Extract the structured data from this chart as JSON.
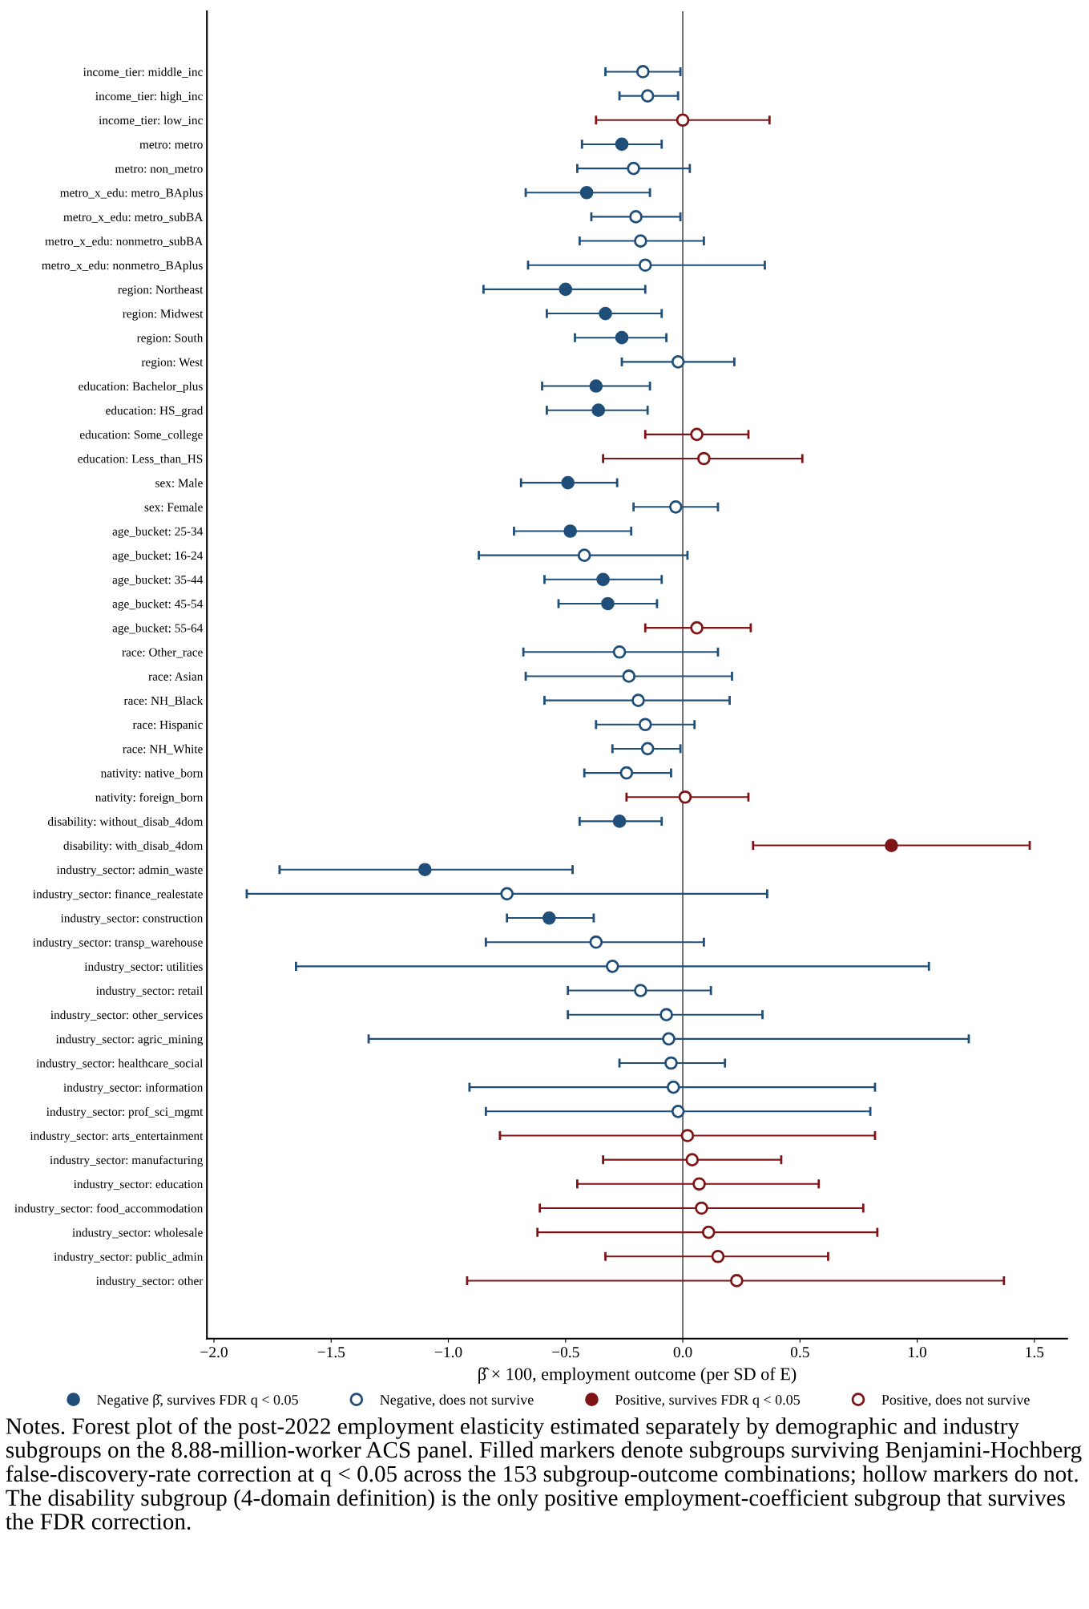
{
  "chart_data": {
    "type": "scatter",
    "orientation": "horizontal",
    "categories": [
      "income_tier: middle_inc",
      "income_tier: high_inc",
      "income_tier: low_inc",
      "metro: metro",
      "metro: non_metro",
      "metro_x_edu: metro_BAplus",
      "metro_x_edu: metro_subBA",
      "metro_x_edu: nonmetro_subBA",
      "metro_x_edu: nonmetro_BAplus",
      "region: Northeast",
      "region: Midwest",
      "region: South",
      "region: West",
      "education: Bachelor_plus",
      "education: HS_grad",
      "education: Some_college",
      "education: Less_than_HS",
      "sex: Male",
      "sex: Female",
      "age_bucket: 25-34",
      "age_bucket: 16-24",
      "age_bucket: 35-44",
      "age_bucket: 45-54",
      "age_bucket: 55-64",
      "race: Other_race",
      "race: Asian",
      "race: NH_Black",
      "race: Hispanic",
      "race: NH_White",
      "nativity: native_born",
      "nativity: foreign_born",
      "disability: without_disab_4dom",
      "disability: with_disab_4dom",
      "industry_sector: admin_waste",
      "industry_sector: finance_realestate",
      "industry_sector: construction",
      "industry_sector: transp_warehouse",
      "industry_sector: utilities",
      "industry_sector: retail",
      "industry_sector: other_services",
      "industry_sector: agric_mining",
      "industry_sector: healthcare_social",
      "industry_sector: information",
      "industry_sector: prof_sci_mgmt",
      "industry_sector: arts_entertainment",
      "industry_sector: manufacturing",
      "industry_sector: education",
      "industry_sector: food_accommodation",
      "industry_sector: wholesale",
      "industry_sector: public_admin",
      "industry_sector: other"
    ],
    "series": [
      {
        "name": "Negative β̂, survives FDR q < 0.05",
        "color": "#1f4e79",
        "marker": "circle",
        "values": [
          null,
          null,
          null,
          -0.26,
          null,
          -0.41,
          null,
          null,
          null,
          -0.5,
          -0.33,
          -0.26,
          null,
          -0.37,
          -0.36,
          null,
          null,
          -0.49,
          null,
          -0.48,
          null,
          -0.34,
          -0.32,
          null,
          null,
          null,
          null,
          null,
          null,
          null,
          null,
          -0.27,
          null,
          -1.1,
          null,
          -0.57,
          null,
          null,
          null,
          null,
          null,
          null,
          null,
          null,
          null,
          null,
          null,
          null,
          null,
          null,
          null
        ],
        "errors": [
          null,
          null,
          null,
          [
            -0.43,
            -0.09
          ],
          null,
          [
            -0.67,
            -0.14
          ],
          null,
          null,
          null,
          [
            -0.85,
            -0.16
          ],
          [
            -0.58,
            -0.09
          ],
          [
            -0.46,
            -0.07
          ],
          null,
          [
            -0.6,
            -0.14
          ],
          [
            -0.58,
            -0.15
          ],
          null,
          null,
          [
            -0.69,
            -0.28
          ],
          null,
          [
            -0.72,
            -0.22
          ],
          null,
          [
            -0.59,
            -0.09
          ],
          [
            -0.53,
            -0.11
          ],
          null,
          null,
          null,
          null,
          null,
          null,
          null,
          null,
          [
            -0.44,
            -0.09
          ],
          null,
          [
            -1.72,
            -0.47
          ],
          null,
          [
            -0.75,
            -0.38
          ],
          null,
          null,
          null,
          null,
          null,
          null,
          null,
          null,
          null,
          null,
          null,
          null,
          null,
          null,
          null
        ]
      },
      {
        "name": "Negative, does not survive",
        "color": "#1f4e79",
        "marker": "circle-open",
        "values": [
          -0.17,
          -0.15,
          null,
          null,
          -0.21,
          null,
          -0.2,
          -0.18,
          -0.16,
          null,
          null,
          null,
          -0.02,
          null,
          null,
          null,
          null,
          null,
          -0.03,
          null,
          -0.42,
          null,
          null,
          null,
          -0.27,
          -0.23,
          -0.19,
          -0.16,
          -0.15,
          -0.24,
          null,
          null,
          null,
          null,
          -0.75,
          null,
          -0.37,
          -0.3,
          -0.18,
          -0.07,
          -0.06,
          -0.05,
          -0.04,
          -0.02,
          null,
          null,
          null,
          null,
          null,
          null,
          null
        ],
        "errors": [
          [
            -0.33,
            -0.01
          ],
          [
            -0.27,
            -0.02
          ],
          null,
          null,
          [
            -0.45,
            0.03
          ],
          null,
          [
            -0.39,
            -0.01
          ],
          [
            -0.44,
            0.09
          ],
          [
            -0.66,
            0.35
          ],
          null,
          null,
          null,
          [
            -0.26,
            0.22
          ],
          null,
          null,
          null,
          null,
          null,
          [
            -0.21,
            0.15
          ],
          null,
          [
            -0.87,
            0.02
          ],
          null,
          null,
          null,
          [
            -0.68,
            0.15
          ],
          [
            -0.67,
            0.21
          ],
          [
            -0.59,
            0.2
          ],
          [
            -0.37,
            0.05
          ],
          [
            -0.3,
            -0.01
          ],
          [
            -0.42,
            -0.05
          ],
          null,
          null,
          null,
          null,
          [
            -1.86,
            0.36
          ],
          null,
          [
            -0.84,
            0.09
          ],
          [
            -1.65,
            1.05
          ],
          [
            -0.49,
            0.12
          ],
          [
            -0.49,
            0.34
          ],
          [
            -1.34,
            1.22
          ],
          [
            -0.27,
            0.18
          ],
          [
            -0.91,
            0.82
          ],
          [
            -0.84,
            0.8
          ],
          null,
          null,
          null,
          null,
          null,
          null,
          null
        ]
      },
      {
        "name": "Positive, survives FDR q < 0.05",
        "color": "#7f1416",
        "marker": "circle",
        "values": [
          null,
          null,
          null,
          null,
          null,
          null,
          null,
          null,
          null,
          null,
          null,
          null,
          null,
          null,
          null,
          null,
          null,
          null,
          null,
          null,
          null,
          null,
          null,
          null,
          null,
          null,
          null,
          null,
          null,
          null,
          null,
          null,
          0.89,
          null,
          null,
          null,
          null,
          null,
          null,
          null,
          null,
          null,
          null,
          null,
          null,
          null,
          null,
          null,
          null,
          null,
          null
        ],
        "errors": [
          null,
          null,
          null,
          null,
          null,
          null,
          null,
          null,
          null,
          null,
          null,
          null,
          null,
          null,
          null,
          null,
          null,
          null,
          null,
          null,
          null,
          null,
          null,
          null,
          null,
          null,
          null,
          null,
          null,
          null,
          null,
          null,
          [
            0.3,
            1.48
          ],
          null,
          null,
          null,
          null,
          null,
          null,
          null,
          null,
          null,
          null,
          null,
          null,
          null,
          null,
          null,
          null,
          null,
          null
        ]
      },
      {
        "name": "Positive, does not survive",
        "color": "#7f1416",
        "marker": "circle-open",
        "values": [
          null,
          null,
          0.0,
          null,
          null,
          null,
          null,
          null,
          null,
          null,
          null,
          null,
          null,
          null,
          null,
          0.06,
          0.09,
          null,
          null,
          null,
          null,
          null,
          null,
          0.06,
          null,
          null,
          null,
          null,
          null,
          null,
          0.01,
          null,
          null,
          null,
          null,
          null,
          null,
          null,
          null,
          null,
          null,
          null,
          null,
          null,
          0.02,
          0.04,
          0.07,
          0.08,
          0.11,
          0.15,
          0.23
        ],
        "errors": [
          null,
          null,
          [
            -0.37,
            0.37
          ],
          null,
          null,
          null,
          null,
          null,
          null,
          null,
          null,
          null,
          null,
          null,
          null,
          [
            -0.16,
            0.28
          ],
          [
            -0.34,
            0.51
          ],
          null,
          null,
          null,
          null,
          null,
          null,
          [
            -0.16,
            0.29
          ],
          null,
          null,
          null,
          null,
          null,
          null,
          [
            -0.24,
            0.28
          ],
          null,
          null,
          null,
          null,
          null,
          null,
          null,
          null,
          null,
          null,
          null,
          null,
          null,
          [
            -0.78,
            0.82
          ],
          [
            -0.34,
            0.42
          ],
          [
            -0.45,
            0.58
          ],
          [
            -0.61,
            0.77
          ],
          [
            -0.62,
            0.83
          ],
          [
            -0.33,
            0.62
          ],
          [
            -0.92,
            1.37
          ]
        ]
      }
    ],
    "xlabel": "β̂ × 100, employment outcome (per SD of E)",
    "xlim": [
      -2.03,
      1.64
    ],
    "xticks": [
      {
        "value": -2.0,
        "label": "−2.0"
      },
      {
        "value": -1.5,
        "label": "−1.5"
      },
      {
        "value": -1.0,
        "label": "−1.0"
      },
      {
        "value": -0.5,
        "label": "−0.5"
      },
      {
        "value": 0.0,
        "label": "0.0"
      },
      {
        "value": 0.5,
        "label": "0.5"
      },
      {
        "value": 1.0,
        "label": "1.0"
      },
      {
        "value": 1.5,
        "label": "1.5"
      }
    ],
    "ref_lines": [
      {
        "axis": "x",
        "value": 0,
        "color": "#555555"
      }
    ],
    "grid": false,
    "legend": "bottom",
    "annotations": [
      "Notes. Forest plot of the post-2022 employment elasticity estimated separately by demographic and industry subgroups on the 8.88-million-worker ACS panel. Filled markers denote subgroups surviving Benjamini-Hochberg false-discovery-rate correction at q < 0.05 across the 153 subgroup-outcome combinations; hollow markers do not. The disability subgroup (4-domain definition) is the only positive employment-coefficient subgroup that survives the FDR correction."
    ]
  }
}
